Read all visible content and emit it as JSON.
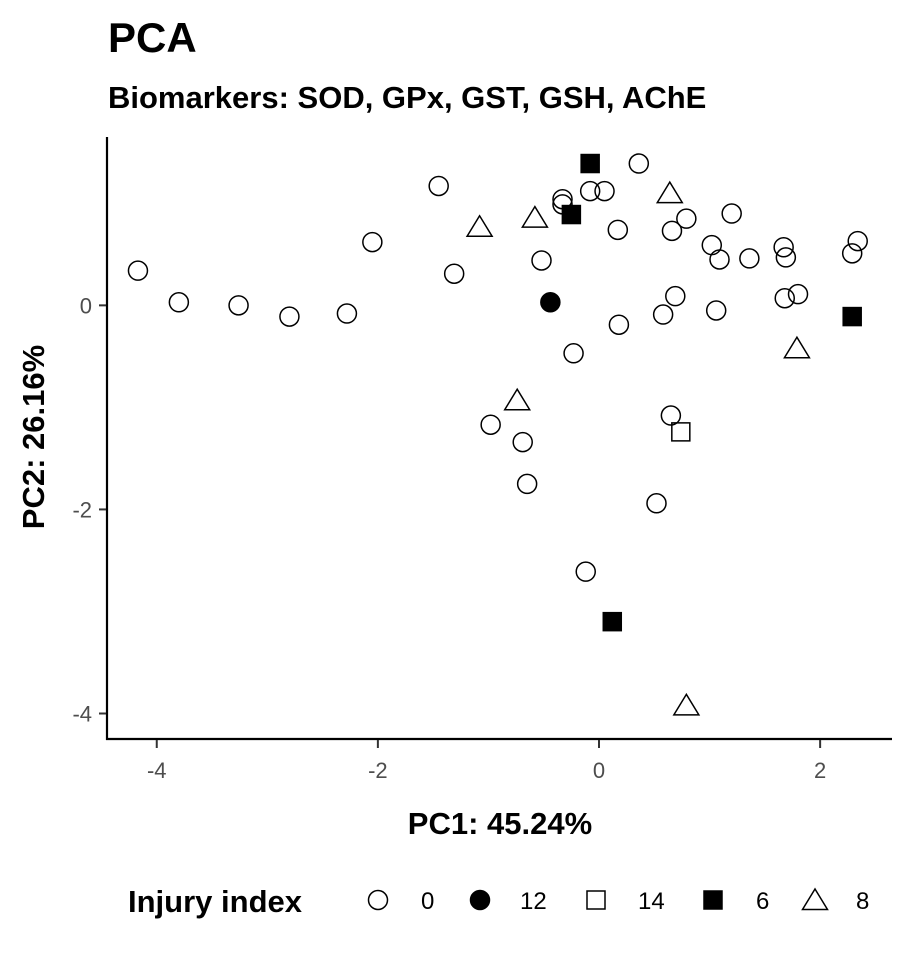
{
  "chart_data": {
    "type": "scatter",
    "title": "PCA",
    "subtitle": "Biomarkers: SOD, GPx, GST, GSH, AChE",
    "xlabel": "PC1: 45.24%",
    "ylabel": "PC2: 26.16%",
    "xlim": [
      -4.45,
      2.65
    ],
    "ylim": [
      -4.25,
      1.65
    ],
    "x_ticks": [
      -4,
      -2,
      0,
      2
    ],
    "y_ticks": [
      -4,
      -2,
      0
    ],
    "x_tick_labels": [
      "-4",
      "-2",
      "0",
      "2"
    ],
    "y_tick_labels": [
      "-4",
      "-2",
      "0"
    ],
    "grid": false,
    "legend": {
      "title": "Injury index",
      "position": "bottom",
      "entries": [
        {
          "label": "0",
          "shape": "circle-open"
        },
        {
          "label": "12",
          "shape": "circle-filled"
        },
        {
          "label": "14",
          "shape": "square-open"
        },
        {
          "label": "6",
          "shape": "square-filled"
        },
        {
          "label": "8",
          "shape": "triangle-open"
        }
      ]
    },
    "series": [
      {
        "name": "0",
        "shape": "circle-open",
        "points": [
          [
            -4.17,
            0.34
          ],
          [
            -3.8,
            0.03
          ],
          [
            -3.26,
            0.0
          ],
          [
            -2.8,
            -0.11
          ],
          [
            -2.28,
            -0.08
          ],
          [
            -2.05,
            0.62
          ],
          [
            -1.45,
            1.17
          ],
          [
            -1.31,
            0.31
          ],
          [
            -0.52,
            0.44
          ],
          [
            -0.33,
            1.04
          ],
          [
            -0.33,
            0.99
          ],
          [
            -0.08,
            1.12
          ],
          [
            0.05,
            1.12
          ],
          [
            0.36,
            1.39
          ],
          [
            0.17,
            0.74
          ],
          [
            0.66,
            0.73
          ],
          [
            0.79,
            0.85
          ],
          [
            1.2,
            0.9
          ],
          [
            1.02,
            0.59
          ],
          [
            1.09,
            0.45
          ],
          [
            1.36,
            0.46
          ],
          [
            1.67,
            0.57
          ],
          [
            1.69,
            0.47
          ],
          [
            2.34,
            0.63
          ],
          [
            2.29,
            0.51
          ],
          [
            1.8,
            0.11
          ],
          [
            1.68,
            0.07
          ],
          [
            0.69,
            0.09
          ],
          [
            1.06,
            -0.05
          ],
          [
            0.58,
            -0.09
          ],
          [
            0.18,
            -0.19
          ],
          [
            -0.23,
            -0.47
          ],
          [
            -0.98,
            -1.17
          ],
          [
            -0.69,
            -1.34
          ],
          [
            -0.65,
            -1.75
          ],
          [
            0.65,
            -1.08
          ],
          [
            0.52,
            -1.94
          ],
          [
            -0.12,
            -2.61
          ]
        ]
      },
      {
        "name": "12",
        "shape": "circle-filled",
        "points": [
          [
            -0.44,
            0.03
          ]
        ]
      },
      {
        "name": "14",
        "shape": "square-open",
        "points": [
          [
            0.74,
            -1.24
          ]
        ]
      },
      {
        "name": "6",
        "shape": "square-filled",
        "points": [
          [
            -0.08,
            1.39
          ],
          [
            -0.25,
            0.89
          ],
          [
            2.29,
            -0.11
          ],
          [
            0.12,
            -3.1
          ]
        ]
      },
      {
        "name": "8",
        "shape": "triangle-open",
        "points": [
          [
            0.64,
            1.1
          ],
          [
            -1.08,
            0.77
          ],
          [
            -0.58,
            0.86
          ],
          [
            1.79,
            -0.42
          ],
          [
            -0.74,
            -0.93
          ],
          [
            0.79,
            -3.92
          ]
        ]
      }
    ]
  }
}
